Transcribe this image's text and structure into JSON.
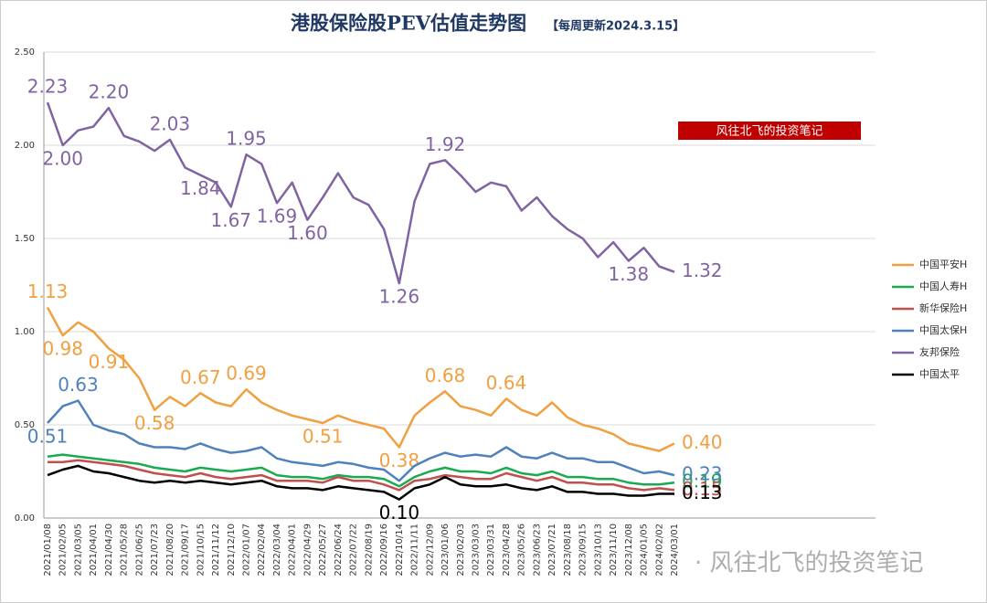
{
  "chart_data": {
    "type": "line",
    "title": "港股保险股PEV估值走势图",
    "subtitle": "【每周更新2024.3.15】",
    "badge": "风往北飞的投资笔记",
    "watermark": "· 风往北飞的投资笔记",
    "categories": [
      "2021/01/08",
      "2021/02/05",
      "2021/03/05",
      "2021/04/01",
      "2021/04/30",
      "2021/05/28",
      "2021/06/25",
      "2021/07/23",
      "2021/08/20",
      "2021/09/17",
      "2021/10/15",
      "2021/11/12",
      "2021/12/10",
      "2022/01/07",
      "2022/02/04",
      "2022/03/04",
      "2022/04/01",
      "2022/04/29",
      "2022/05/27",
      "2022/06/24",
      "2022/07/22",
      "2022/08/19",
      "2022/09/16",
      "2022/10/14",
      "2022/11/11",
      "2022/12/09",
      "2023/01/06",
      "2023/02/03",
      "2023/03/03",
      "2023/03/31",
      "2023/04/28",
      "2023/05/26",
      "2023/06/23",
      "2023/07/21",
      "2023/08/18",
      "2023/09/15",
      "2023/10/13",
      "2023/11/10",
      "2023/12/08",
      "2024/01/05",
      "2024/02/02",
      "2024/03/01"
    ],
    "ylim": [
      0,
      2.5
    ],
    "yticks": [
      {
        "value": 0,
        "label": "0.00"
      },
      {
        "value": 0.5,
        "label": "0.50"
      },
      {
        "value": 1,
        "label": "1.00"
      },
      {
        "value": 1.5,
        "label": "1.50"
      },
      {
        "value": 2,
        "label": "2.00"
      },
      {
        "value": 2.5,
        "label": "2.50"
      }
    ],
    "grid": true,
    "legend": "right",
    "series": [
      {
        "name": "中国平安H",
        "color": "#f0a040",
        "values": [
          1.13,
          0.98,
          1.05,
          1.0,
          0.91,
          0.85,
          0.75,
          0.58,
          0.65,
          0.6,
          0.67,
          0.62,
          0.6,
          0.69,
          0.62,
          0.58,
          0.55,
          0.53,
          0.51,
          0.55,
          0.52,
          0.5,
          0.48,
          0.38,
          0.55,
          0.62,
          0.68,
          0.6,
          0.58,
          0.55,
          0.64,
          0.58,
          0.55,
          0.62,
          0.54,
          0.5,
          0.48,
          0.45,
          0.4,
          0.38,
          0.36,
          0.4
        ],
        "value_labels": [
          "1.13",
          "0.98",
          null,
          null,
          "0.91",
          null,
          null,
          "0.58",
          null,
          null,
          "0.67",
          null,
          null,
          "0.69",
          null,
          null,
          null,
          null,
          "0.51",
          null,
          null,
          null,
          null,
          "0.38",
          null,
          null,
          "0.68",
          null,
          null,
          null,
          "0.64",
          null,
          null,
          null,
          null,
          null,
          null,
          null,
          null,
          null,
          null,
          "0.40"
        ]
      },
      {
        "name": "中国人寿H",
        "color": "#1aaa50",
        "values": [
          0.33,
          0.34,
          0.33,
          0.32,
          0.31,
          0.3,
          0.29,
          0.27,
          0.26,
          0.25,
          0.27,
          0.26,
          0.25,
          0.26,
          0.27,
          0.23,
          0.22,
          0.22,
          0.21,
          0.23,
          0.22,
          0.22,
          0.21,
          0.17,
          0.22,
          0.25,
          0.27,
          0.25,
          0.25,
          0.24,
          0.27,
          0.24,
          0.23,
          0.25,
          0.22,
          0.22,
          0.21,
          0.21,
          0.19,
          0.18,
          0.18,
          0.19
        ],
        "value_labels": [
          null,
          null,
          null,
          null,
          null,
          null,
          null,
          null,
          null,
          null,
          null,
          null,
          null,
          null,
          null,
          null,
          null,
          null,
          null,
          null,
          null,
          null,
          null,
          null,
          null,
          null,
          null,
          null,
          null,
          null,
          null,
          null,
          null,
          null,
          null,
          null,
          null,
          null,
          null,
          null,
          null,
          "0.19"
        ]
      },
      {
        "name": "新华保险H",
        "color": "#c0504d",
        "values": [
          0.3,
          0.3,
          0.31,
          0.3,
          0.29,
          0.28,
          0.26,
          0.24,
          0.23,
          0.22,
          0.24,
          0.22,
          0.21,
          0.22,
          0.23,
          0.2,
          0.2,
          0.2,
          0.19,
          0.22,
          0.2,
          0.2,
          0.18,
          0.15,
          0.2,
          0.21,
          0.23,
          0.22,
          0.21,
          0.21,
          0.24,
          0.22,
          0.2,
          0.22,
          0.19,
          0.19,
          0.18,
          0.18,
          0.16,
          0.15,
          0.16,
          0.15
        ],
        "value_labels": [
          null,
          null,
          null,
          null,
          null,
          null,
          null,
          null,
          null,
          null,
          null,
          null,
          null,
          null,
          null,
          null,
          null,
          null,
          null,
          null,
          null,
          null,
          null,
          null,
          null,
          null,
          null,
          null,
          null,
          null,
          null,
          null,
          null,
          null,
          null,
          null,
          null,
          null,
          null,
          null,
          null,
          "0.15"
        ]
      },
      {
        "name": "中国太保H",
        "color": "#4f81bd",
        "values": [
          0.51,
          0.6,
          0.63,
          0.5,
          0.47,
          0.45,
          0.4,
          0.38,
          0.38,
          0.37,
          0.4,
          0.37,
          0.35,
          0.36,
          0.38,
          0.32,
          0.3,
          0.29,
          0.28,
          0.3,
          0.29,
          0.27,
          0.26,
          0.2,
          0.28,
          0.32,
          0.35,
          0.33,
          0.34,
          0.33,
          0.38,
          0.33,
          0.32,
          0.35,
          0.32,
          0.32,
          0.3,
          0.3,
          0.27,
          0.24,
          0.25,
          0.23
        ],
        "value_labels": [
          "0.51",
          null,
          "0.63",
          null,
          null,
          null,
          null,
          null,
          null,
          null,
          null,
          null,
          null,
          null,
          null,
          null,
          null,
          null,
          null,
          null,
          null,
          null,
          null,
          null,
          null,
          null,
          null,
          null,
          null,
          null,
          null,
          null,
          null,
          null,
          null,
          null,
          null,
          null,
          null,
          null,
          null,
          "0.23"
        ]
      },
      {
        "name": "友邦保险",
        "color": "#8064a2",
        "values": [
          2.23,
          2.0,
          2.08,
          2.1,
          2.2,
          2.05,
          2.02,
          1.97,
          2.03,
          1.88,
          1.84,
          1.8,
          1.67,
          1.95,
          1.9,
          1.69,
          1.8,
          1.6,
          1.72,
          1.85,
          1.72,
          1.68,
          1.55,
          1.26,
          1.7,
          1.9,
          1.92,
          1.84,
          1.75,
          1.8,
          1.78,
          1.65,
          1.72,
          1.62,
          1.55,
          1.5,
          1.4,
          1.48,
          1.38,
          1.45,
          1.35,
          1.32
        ],
        "value_labels": [
          "2.23",
          "2.00",
          null,
          null,
          "2.20",
          null,
          null,
          null,
          "2.03",
          null,
          "1.84",
          null,
          "1.67",
          "1.95",
          null,
          "1.69",
          null,
          "1.60",
          null,
          null,
          null,
          null,
          null,
          "1.26",
          null,
          null,
          "1.92",
          null,
          null,
          null,
          null,
          null,
          null,
          null,
          null,
          null,
          null,
          null,
          "1.38",
          null,
          null,
          "1.32"
        ]
      },
      {
        "name": "中国太平",
        "color": "#000000",
        "values": [
          0.23,
          0.26,
          0.28,
          0.25,
          0.24,
          0.22,
          0.2,
          0.19,
          0.2,
          0.19,
          0.2,
          0.19,
          0.18,
          0.19,
          0.2,
          0.17,
          0.16,
          0.16,
          0.15,
          0.17,
          0.16,
          0.15,
          0.14,
          0.1,
          0.16,
          0.18,
          0.22,
          0.18,
          0.17,
          0.17,
          0.18,
          0.16,
          0.15,
          0.17,
          0.14,
          0.14,
          0.13,
          0.13,
          0.12,
          0.12,
          0.13,
          0.13
        ],
        "value_labels": [
          null,
          null,
          null,
          null,
          null,
          null,
          null,
          null,
          null,
          null,
          null,
          null,
          null,
          null,
          null,
          null,
          null,
          null,
          null,
          null,
          null,
          null,
          null,
          "0.10",
          null,
          null,
          null,
          null,
          null,
          null,
          null,
          null,
          null,
          null,
          null,
          null,
          null,
          null,
          null,
          null,
          null,
          "0.13"
        ]
      }
    ]
  }
}
